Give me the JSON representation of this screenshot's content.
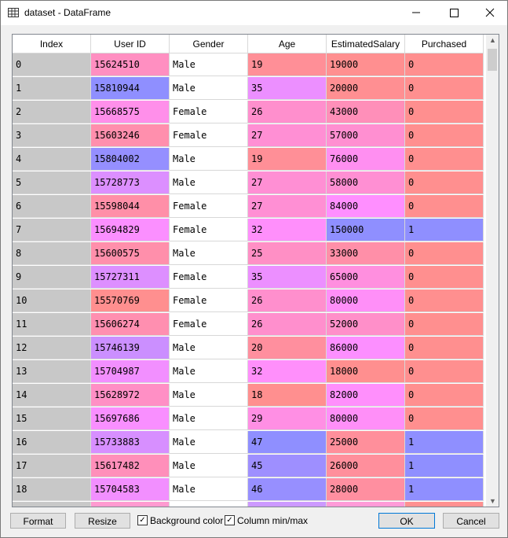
{
  "window": {
    "title": "dataset - DataFrame"
  },
  "table": {
    "columns": [
      "Index",
      "User ID",
      "Gender",
      "Age",
      "EstimatedSalary",
      "Purchased"
    ],
    "rows": [
      [
        0,
        15624510,
        "Male",
        19,
        19000,
        0
      ],
      [
        1,
        15810944,
        "Male",
        35,
        20000,
        0
      ],
      [
        2,
        15668575,
        "Female",
        26,
        43000,
        0
      ],
      [
        3,
        15603246,
        "Female",
        27,
        57000,
        0
      ],
      [
        4,
        15804002,
        "Male",
        19,
        76000,
        0
      ],
      [
        5,
        15728773,
        "Male",
        27,
        58000,
        0
      ],
      [
        6,
        15598044,
        "Female",
        27,
        84000,
        0
      ],
      [
        7,
        15694829,
        "Female",
        32,
        150000,
        1
      ],
      [
        8,
        15600575,
        "Male",
        25,
        33000,
        0
      ],
      [
        9,
        15727311,
        "Female",
        35,
        65000,
        0
      ],
      [
        10,
        15570769,
        "Female",
        26,
        80000,
        0
      ],
      [
        11,
        15606274,
        "Female",
        26,
        52000,
        0
      ],
      [
        12,
        15746139,
        "Male",
        20,
        86000,
        0
      ],
      [
        13,
        15704987,
        "Male",
        32,
        18000,
        0
      ],
      [
        14,
        15628972,
        "Male",
        18,
        82000,
        0
      ],
      [
        15,
        15697686,
        "Male",
        29,
        80000,
        0
      ],
      [
        16,
        15733883,
        "Male",
        47,
        25000,
        1
      ],
      [
        17,
        15617482,
        "Male",
        45,
        26000,
        1
      ],
      [
        18,
        15704583,
        "Male",
        46,
        28000,
        1
      ]
    ]
  },
  "buttons": {
    "format": "Format",
    "resize": "Resize",
    "ok": "OK",
    "cancel": "Cancel"
  },
  "options": {
    "background_color": {
      "label": "Background color",
      "checked": true
    },
    "column_minmax": {
      "label": "Column min/max",
      "checked": true
    }
  }
}
